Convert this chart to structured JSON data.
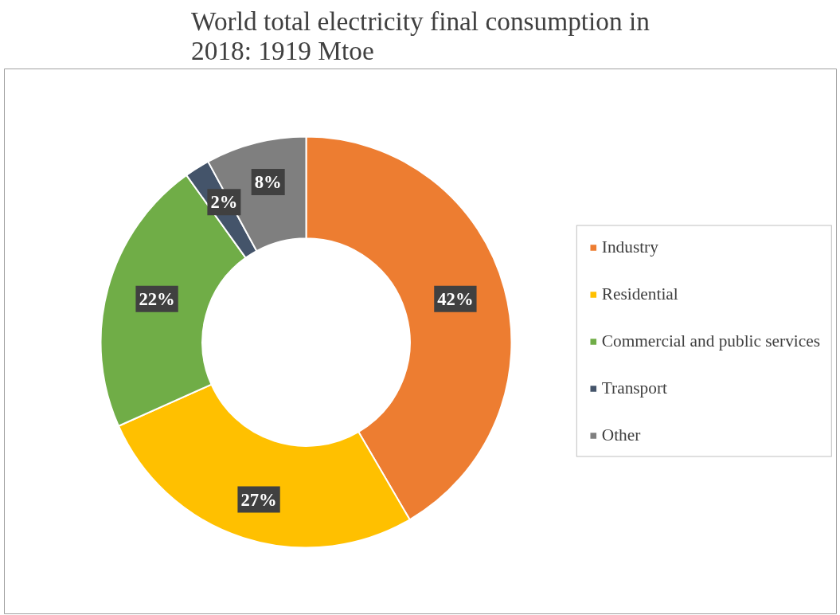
{
  "chart_data": {
    "type": "donut",
    "title": "World total electricity final consumption in 2018: 1919 Mtoe",
    "categories": [
      "Industry",
      "Residential",
      "Commercial and public services",
      "Transport",
      "Other"
    ],
    "values": [
      42,
      27,
      22,
      2,
      8
    ],
    "colors": [
      "#ed7d31",
      "#ffc000",
      "#70ad47",
      "#44546a",
      "#7f7f7f"
    ],
    "value_labels": [
      "42%",
      "27%",
      "22%",
      "2%",
      "8%"
    ],
    "legend": "right"
  }
}
